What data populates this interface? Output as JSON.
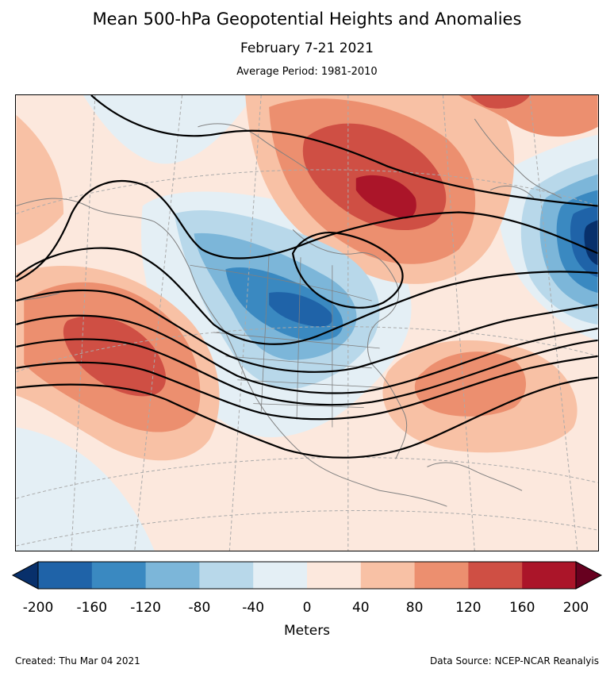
{
  "title": "Mean 500-hPa Geopotential Heights and Anomalies",
  "subtitle": "February 7-21 2021",
  "average_period": "Average Period: 1981-2010",
  "colorbar": {
    "label": "Meters",
    "ticks": [
      "-200",
      "-160",
      "-120",
      "-80",
      "-40",
      "0",
      "40",
      "80",
      "120",
      "160",
      "200"
    ],
    "colors": [
      "#08306b",
      "#1f63a8",
      "#3a89c1",
      "#7cb6d9",
      "#b8d8ea",
      "#e4eff5",
      "#fce8dd",
      "#f8c1a5",
      "#ec8f6f",
      "#cf4f44",
      "#ab1529",
      "#67001f"
    ]
  },
  "footer": {
    "created": "Created: Thu Mar 04 2021",
    "source": "Data Source: NCEP-NCAR Reanalyis"
  },
  "map": {
    "region": "North America",
    "projection": "Lambert Conformal",
    "contour_color": "#000000",
    "coastline_color": "#808080",
    "graticule_color": "#aaaaaa"
  }
}
